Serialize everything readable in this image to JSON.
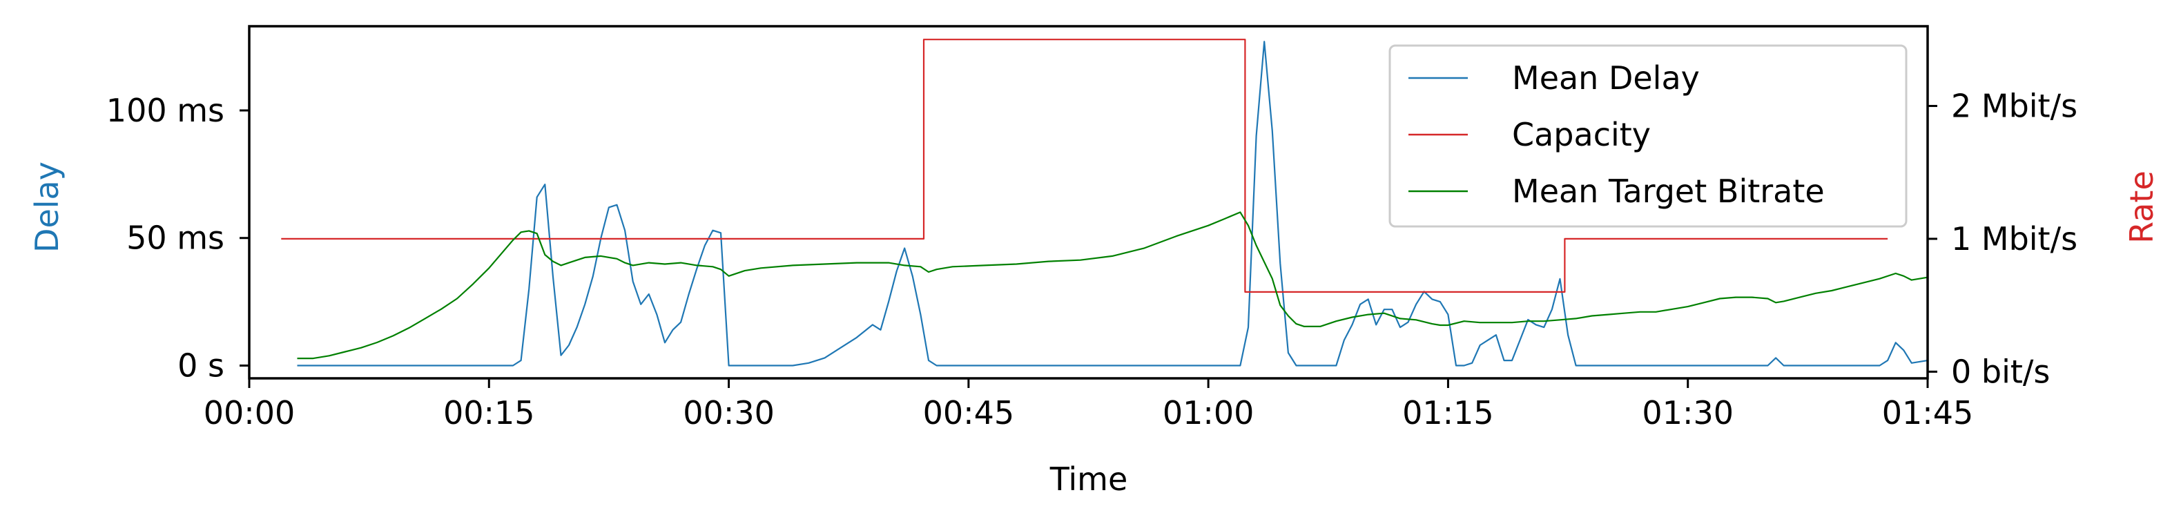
{
  "chart_data": {
    "type": "line",
    "title": "",
    "xlabel": "Time",
    "ylabel_left": "Delay",
    "ylabel_right": "Rate",
    "xlim": [
      0,
      105
    ],
    "ylim_left": [
      -5,
      133
    ],
    "ylim_right": [
      -0.05,
      2.6
    ],
    "x_ticks": [
      {
        "value": 0,
        "label": "00:00"
      },
      {
        "value": 15,
        "label": "00:15"
      },
      {
        "value": 30,
        "label": "00:30"
      },
      {
        "value": 45,
        "label": "00:45"
      },
      {
        "value": 60,
        "label": "01:00"
      },
      {
        "value": 75,
        "label": "01:15"
      },
      {
        "value": 90,
        "label": "01:30"
      },
      {
        "value": 105,
        "label": "01:45"
      }
    ],
    "y_ticks_left": [
      {
        "value": 0,
        "label": "0 s"
      },
      {
        "value": 50,
        "label": "50 ms"
      },
      {
        "value": 100,
        "label": "100 ms"
      }
    ],
    "y_ticks_right": [
      {
        "value": 0,
        "label": "0 bit/s"
      },
      {
        "value": 1,
        "label": "1 Mbit/s"
      },
      {
        "value": 2,
        "label": "2 Mbit/s"
      }
    ],
    "legend_position": "top-right",
    "grid": false,
    "series": [
      {
        "name": "Mean Delay",
        "axis": "left",
        "color": "#1f77b4",
        "points": [
          [
            3,
            0
          ],
          [
            16.5,
            0
          ],
          [
            17,
            2
          ],
          [
            17.5,
            30
          ],
          [
            18,
            66
          ],
          [
            18.5,
            71
          ],
          [
            19,
            35
          ],
          [
            19.5,
            4
          ],
          [
            20,
            8
          ],
          [
            20.5,
            15
          ],
          [
            21,
            24
          ],
          [
            21.5,
            35
          ],
          [
            22,
            50
          ],
          [
            22.5,
            62
          ],
          [
            23,
            63
          ],
          [
            23.5,
            53
          ],
          [
            24,
            33
          ],
          [
            24.5,
            24
          ],
          [
            25,
            28
          ],
          [
            25.5,
            20
          ],
          [
            26,
            9
          ],
          [
            26.5,
            14
          ],
          [
            27,
            17
          ],
          [
            27.5,
            28
          ],
          [
            28,
            38
          ],
          [
            28.5,
            47
          ],
          [
            29,
            53
          ],
          [
            29.5,
            52
          ],
          [
            30,
            0
          ],
          [
            34,
            0
          ],
          [
            35,
            1
          ],
          [
            36,
            3
          ],
          [
            37,
            7
          ],
          [
            38,
            11
          ],
          [
            39,
            16
          ],
          [
            39.5,
            14
          ],
          [
            40,
            25
          ],
          [
            40.5,
            37
          ],
          [
            41,
            46
          ],
          [
            41.5,
            35
          ],
          [
            42,
            20
          ],
          [
            42.5,
            2
          ],
          [
            43,
            0
          ],
          [
            62,
            0
          ],
          [
            62.5,
            15
          ],
          [
            63,
            90
          ],
          [
            63.5,
            127
          ],
          [
            64,
            92
          ],
          [
            64.5,
            40
          ],
          [
            65,
            5
          ],
          [
            65.5,
            0
          ],
          [
            68,
            0
          ],
          [
            68.5,
            10
          ],
          [
            69,
            16
          ],
          [
            69.5,
            24
          ],
          [
            70,
            26
          ],
          [
            70.5,
            16
          ],
          [
            71,
            22
          ],
          [
            71.5,
            22
          ],
          [
            72,
            15
          ],
          [
            72.5,
            17
          ],
          [
            73,
            24
          ],
          [
            73.5,
            29
          ],
          [
            74,
            26
          ],
          [
            74.5,
            25
          ],
          [
            75,
            20
          ],
          [
            75.5,
            0
          ],
          [
            76,
            0
          ],
          [
            76.5,
            1
          ],
          [
            77,
            8
          ],
          [
            77.5,
            10
          ],
          [
            78,
            12
          ],
          [
            78.5,
            2
          ],
          [
            79,
            2
          ],
          [
            79.5,
            10
          ],
          [
            80,
            18
          ],
          [
            80.5,
            16
          ],
          [
            81,
            15
          ],
          [
            81.5,
            22
          ],
          [
            82,
            34
          ],
          [
            82.5,
            12
          ],
          [
            83,
            0
          ],
          [
            95,
            0
          ],
          [
            95.5,
            3
          ],
          [
            96,
            0
          ],
          [
            102,
            0
          ],
          [
            102.5,
            2
          ],
          [
            103,
            9
          ],
          [
            103.5,
            6
          ],
          [
            104,
            1
          ],
          [
            105,
            2
          ]
        ]
      },
      {
        "name": "Capacity",
        "axis": "right",
        "color": "#d62728",
        "points": [
          [
            2,
            1.0
          ],
          [
            42.2,
            1.0
          ],
          [
            42.2,
            2.5
          ],
          [
            62.3,
            2.5
          ],
          [
            62.3,
            0.6
          ],
          [
            82.3,
            0.6
          ],
          [
            82.3,
            1.0
          ],
          [
            102.5,
            1.0
          ]
        ]
      },
      {
        "name": "Mean Target Bitrate",
        "axis": "right",
        "color": "#008000",
        "points": [
          [
            3,
            0.1
          ],
          [
            4,
            0.1
          ],
          [
            5,
            0.12
          ],
          [
            6,
            0.15
          ],
          [
            7,
            0.18
          ],
          [
            8,
            0.22
          ],
          [
            9,
            0.27
          ],
          [
            10,
            0.33
          ],
          [
            11,
            0.4
          ],
          [
            12,
            0.47
          ],
          [
            13,
            0.55
          ],
          [
            14,
            0.66
          ],
          [
            15,
            0.78
          ],
          [
            16,
            0.92
          ],
          [
            16.5,
            0.99
          ],
          [
            17,
            1.05
          ],
          [
            17.5,
            1.06
          ],
          [
            18,
            1.04
          ],
          [
            18.5,
            0.88
          ],
          [
            19,
            0.83
          ],
          [
            19.5,
            0.8
          ],
          [
            20,
            0.82
          ],
          [
            21,
            0.86
          ],
          [
            22,
            0.87
          ],
          [
            23,
            0.85
          ],
          [
            23.5,
            0.82
          ],
          [
            24,
            0.8
          ],
          [
            25,
            0.82
          ],
          [
            26,
            0.81
          ],
          [
            27,
            0.82
          ],
          [
            28,
            0.8
          ],
          [
            29,
            0.79
          ],
          [
            29.5,
            0.77
          ],
          [
            30,
            0.72
          ],
          [
            31,
            0.76
          ],
          [
            32,
            0.78
          ],
          [
            34,
            0.8
          ],
          [
            36,
            0.81
          ],
          [
            38,
            0.82
          ],
          [
            40,
            0.82
          ],
          [
            41,
            0.8
          ],
          [
            42,
            0.79
          ],
          [
            42.5,
            0.75
          ],
          [
            43,
            0.77
          ],
          [
            44,
            0.79
          ],
          [
            46,
            0.8
          ],
          [
            48,
            0.81
          ],
          [
            50,
            0.83
          ],
          [
            52,
            0.84
          ],
          [
            54,
            0.87
          ],
          [
            56,
            0.93
          ],
          [
            58,
            1.02
          ],
          [
            60,
            1.1
          ],
          [
            61,
            1.15
          ],
          [
            62,
            1.2
          ],
          [
            62.5,
            1.1
          ],
          [
            63,
            0.95
          ],
          [
            64,
            0.7
          ],
          [
            64.5,
            0.5
          ],
          [
            65,
            0.42
          ],
          [
            65.5,
            0.36
          ],
          [
            66,
            0.34
          ],
          [
            67,
            0.34
          ],
          [
            68,
            0.38
          ],
          [
            69,
            0.41
          ],
          [
            70,
            0.43
          ],
          [
            71,
            0.44
          ],
          [
            72,
            0.4
          ],
          [
            73,
            0.39
          ],
          [
            74,
            0.36
          ],
          [
            74.5,
            0.35
          ],
          [
            75,
            0.35
          ],
          [
            76,
            0.38
          ],
          [
            77,
            0.37
          ],
          [
            78,
            0.37
          ],
          [
            79,
            0.37
          ],
          [
            80,
            0.38
          ],
          [
            81,
            0.38
          ],
          [
            82,
            0.39
          ],
          [
            83,
            0.4
          ],
          [
            84,
            0.42
          ],
          [
            85,
            0.43
          ],
          [
            86,
            0.44
          ],
          [
            87,
            0.45
          ],
          [
            88,
            0.45
          ],
          [
            89,
            0.47
          ],
          [
            90,
            0.49
          ],
          [
            91,
            0.52
          ],
          [
            92,
            0.55
          ],
          [
            93,
            0.56
          ],
          [
            94,
            0.56
          ],
          [
            95,
            0.55
          ],
          [
            95.5,
            0.52
          ],
          [
            96,
            0.53
          ],
          [
            97,
            0.56
          ],
          [
            98,
            0.59
          ],
          [
            99,
            0.61
          ],
          [
            100,
            0.64
          ],
          [
            101,
            0.67
          ],
          [
            102,
            0.7
          ],
          [
            103,
            0.74
          ],
          [
            103.5,
            0.72
          ],
          [
            104,
            0.69
          ],
          [
            105,
            0.71
          ]
        ]
      }
    ]
  }
}
